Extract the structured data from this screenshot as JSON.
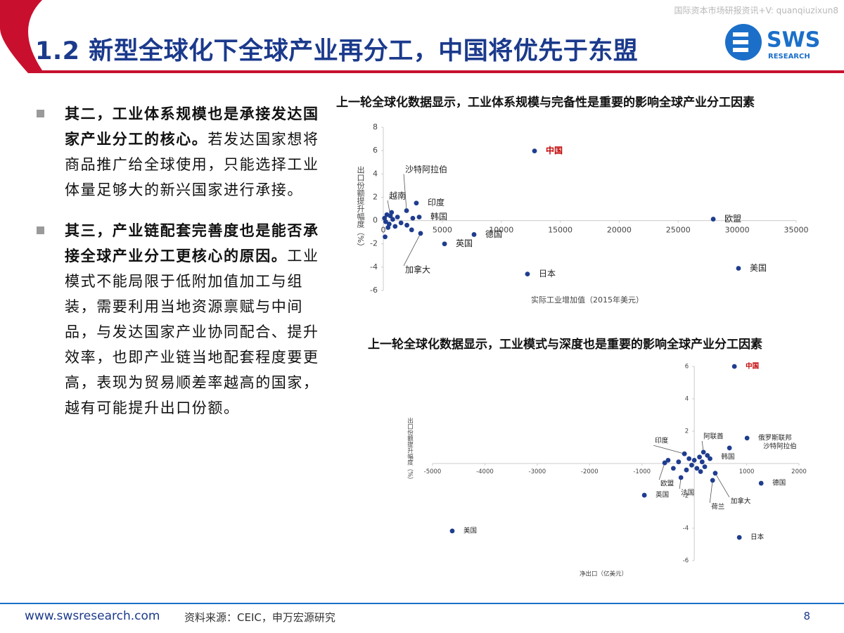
{
  "header": {
    "note": "国际资本市场研报资讯+V: quanqiuzixun8",
    "title": "1.2 新型全球化下全球产业再分工，中国将优先于东盟",
    "logo": "SWS",
    "logo_sub": "RESEARCH"
  },
  "bullets": [
    {
      "bold": "其二，工业体系规模也是承接发达国家产业分工的核心。",
      "text": "若发达国家想将商品推广给全球使用，只能选择工业体量足够大的新兴国家进行承接。"
    },
    {
      "bold": "其三，产业链配套完善度也是能否承接全球产业分工更核心的原因。",
      "text": "工业模式不能局限于低附加值加工与组装，需要利用当地资源禀赋与中间品，与发达国家产业协同配合、提升效率，也即产业链当地配套程度要更高，表现为贸易顺差率越高的国家，越有可能提升出口份额。"
    }
  ],
  "chart_data": [
    {
      "type": "scatter",
      "title": "上一轮全球化数据显示，工业体系规模与完备性是重要的影响全球产业分工因素",
      "x_label": "实际工业增加值（2015年美元）",
      "y_label": "出口份额提升幅度（%）",
      "xlim": [
        0,
        35000
      ],
      "xticks": [
        0,
        5000,
        10000,
        15000,
        20000,
        25000,
        30000,
        35000
      ],
      "ylim": [
        -6,
        8
      ],
      "yticks": [
        -6,
        -4,
        -2,
        0,
        2,
        4,
        6,
        8
      ],
      "grid": false,
      "color": "#1f3d8f",
      "x": [
        12820,
        1970,
        600,
        2800,
        3040,
        3160,
        7690,
        5190,
        12220,
        27970,
        30110,
        100,
        200,
        300,
        500,
        800,
        1000,
        1200,
        400,
        1500,
        2000,
        2500,
        700,
        150,
        2400
      ],
      "values": [
        5.97,
        0.85,
        0.4,
        1.5,
        0.3,
        -1.1,
        -1.2,
        -2.0,
        -4.59,
        0.12,
        -4.1,
        0.2,
        -0.1,
        0.5,
        -0.3,
        0.1,
        -0.5,
        0.3,
        -0.6,
        -0.2,
        -0.4,
        0.2,
        0.7,
        -1.4,
        -0.8
      ],
      "point_labels": [
        "中国",
        "沙特阿拉伯",
        "越南",
        "印度",
        "韩国",
        "加拿大",
        "德国",
        "英国",
        "日本",
        "欧盟",
        "美国",
        null,
        null,
        null,
        null,
        null,
        null,
        null,
        null,
        null,
        null,
        null,
        null,
        null,
        null
      ],
      "label_colors": [
        "#c00000",
        null,
        null,
        null,
        null,
        null,
        null,
        null,
        null,
        null,
        null,
        null,
        null,
        null,
        null,
        null,
        null,
        null,
        null,
        null,
        null,
        null,
        null,
        null,
        null
      ]
    },
    {
      "type": "scatter",
      "title": "上一轮全球化数据显示，工业模式与深度也是重要的影响全球产业分工因素",
      "x_label": "净出口（亿美元）",
      "y_label": "出口份额提升幅度（%）",
      "xlim": [
        -5000,
        2000
      ],
      "xticks": [
        -5000,
        -4000,
        -3000,
        -2000,
        -1000,
        1000,
        2000
      ],
      "ylim": [
        -6,
        6
      ],
      "yticks": [
        -6,
        -4,
        -2,
        2,
        4,
        6
      ],
      "grid": false,
      "color": "#1f3d8f",
      "x": [
        766,
        1008,
        175,
        672,
        -188,
        300,
        -565,
        -255,
        350,
        400,
        1277,
        -954,
        -4624,
        860,
        0,
        50,
        100,
        -50,
        150,
        -100,
        200,
        250,
        -300,
        -500,
        120,
        -150,
        -400
      ],
      "values": [
        6,
        1.57,
        0.7,
        0.96,
        0.6,
        0.3,
        0.04,
        -0.87,
        -1.04,
        -0.6,
        -1.22,
        -1.96,
        -4.17,
        -4.57,
        0.2,
        -0.3,
        0.4,
        -0.1,
        0.1,
        0.3,
        -0.2,
        0.5,
        0.1,
        0.2,
        -0.5,
        -0.4,
        -0.3
      ],
      "point_labels": [
        "中国",
        "俄罗斯联邦",
        "阿联酋",
        "沙特阿拉伯",
        "印度",
        "韩国",
        "欧盟",
        "法国",
        "荷兰",
        "加拿大",
        "德国",
        "英国",
        "美国",
        "日本",
        null,
        null,
        null,
        null,
        null,
        null,
        null,
        null,
        null,
        null,
        null,
        null,
        null
      ],
      "label_colors": [
        "#c00000",
        null,
        null,
        null,
        null,
        null,
        null,
        null,
        null,
        null,
        null,
        null,
        null,
        null,
        null,
        null,
        null,
        null,
        null,
        null,
        null,
        null,
        null,
        null,
        null,
        null,
        null
      ]
    }
  ],
  "footer": {
    "site": "www.swsresearch.com",
    "source": "资料来源：CEIC，申万宏源研究",
    "page": "8"
  }
}
